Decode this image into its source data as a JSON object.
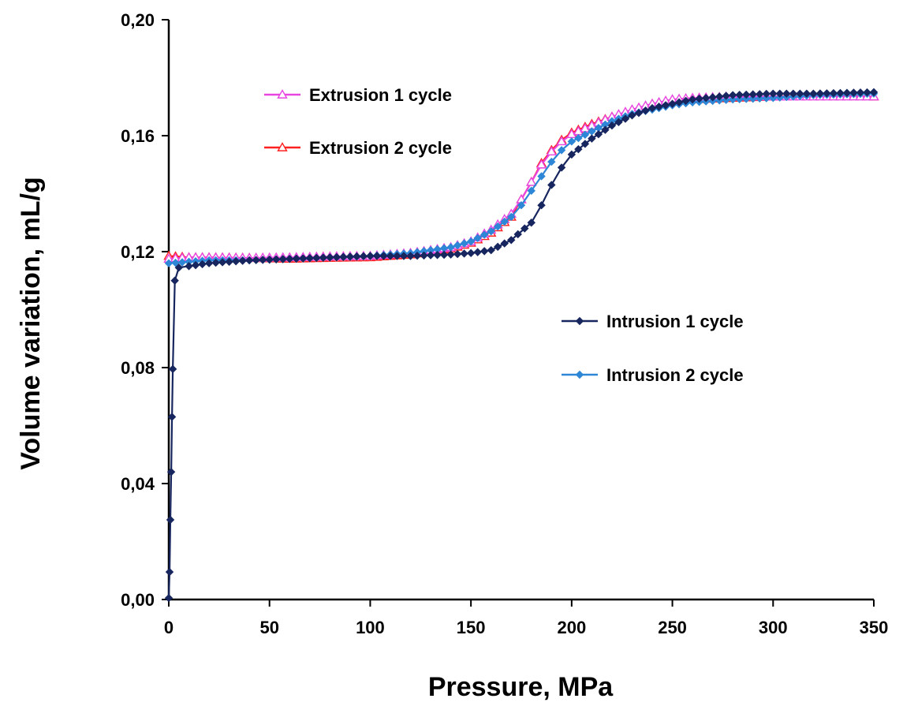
{
  "chart_data": {
    "type": "scatter",
    "title": "",
    "xlabel": "Pressure, MPa",
    "ylabel": "Volume variation, mL/g",
    "xlim": [
      0,
      350
    ],
    "ylim": [
      0,
      0.2
    ],
    "x_ticks": [
      "0",
      "50",
      "100",
      "150",
      "200",
      "250",
      "300",
      "350"
    ],
    "y_ticks": [
      "0,00",
      "0,04",
      "0,08",
      "0,12",
      "0,16",
      "0,20"
    ],
    "grid": false,
    "series": [
      {
        "name": "Extrusion 1 cycle",
        "color": "#e845e0",
        "marker": "triangle-open",
        "points": [
          [
            0,
            0.1175
          ],
          [
            10,
            0.118
          ],
          [
            20,
            0.118
          ],
          [
            40,
            0.1178
          ],
          [
            60,
            0.118
          ],
          [
            80,
            0.1183
          ],
          [
            100,
            0.1185
          ],
          [
            120,
            0.1195
          ],
          [
            140,
            0.1215
          ],
          [
            150,
            0.1235
          ],
          [
            160,
            0.1275
          ],
          [
            170,
            0.133
          ],
          [
            175,
            0.138
          ],
          [
            180,
            0.144
          ],
          [
            185,
            0.15
          ],
          [
            190,
            0.1545
          ],
          [
            195,
            0.158
          ],
          [
            200,
            0.1605
          ],
          [
            210,
            0.1635
          ],
          [
            220,
            0.1665
          ],
          [
            230,
            0.169
          ],
          [
            240,
            0.171
          ],
          [
            250,
            0.1725
          ],
          [
            260,
            0.173
          ],
          [
            280,
            0.1735
          ],
          [
            300,
            0.1735
          ],
          [
            320,
            0.1735
          ],
          [
            350,
            0.1735
          ]
        ]
      },
      {
        "name": "Extrusion 2 cycle",
        "color": "#ff2020",
        "marker": "triangle-open",
        "points": [
          [
            0,
            0.1185
          ],
          [
            10,
            0.118
          ],
          [
            20,
            0.118
          ],
          [
            40,
            0.1178
          ],
          [
            60,
            0.1175
          ],
          [
            80,
            0.1178
          ],
          [
            100,
            0.118
          ],
          [
            120,
            0.119
          ],
          [
            140,
            0.121
          ],
          [
            150,
            0.123
          ],
          [
            160,
            0.1265
          ],
          [
            170,
            0.132
          ],
          [
            175,
            0.138
          ],
          [
            180,
            0.144
          ],
          [
            185,
            0.1505
          ],
          [
            190,
            0.155
          ],
          [
            195,
            0.1585
          ],
          [
            200,
            0.161
          ],
          [
            210,
            0.164
          ],
          [
            220,
            0.1665
          ],
          [
            230,
            0.1685
          ],
          [
            240,
            0.1705
          ],
          [
            250,
            0.172
          ],
          [
            260,
            0.1725
          ],
          [
            280,
            0.173
          ],
          [
            300,
            0.1735
          ],
          [
            320,
            0.174
          ],
          [
            350,
            0.1735
          ]
        ]
      },
      {
        "name": "Intrusion 1 cycle",
        "color": "#17265f",
        "marker": "diamond",
        "points": [
          [
            0,
            0.0005
          ],
          [
            0.4,
            0.0095
          ],
          [
            0.8,
            0.0275
          ],
          [
            1.2,
            0.044
          ],
          [
            1.6,
            0.063
          ],
          [
            2,
            0.0795
          ],
          [
            3,
            0.11
          ],
          [
            5,
            0.1145
          ],
          [
            10,
            0.115
          ],
          [
            20,
            0.116
          ],
          [
            40,
            0.117
          ],
          [
            60,
            0.1175
          ],
          [
            80,
            0.118
          ],
          [
            100,
            0.1185
          ],
          [
            120,
            0.1185
          ],
          [
            140,
            0.119
          ],
          [
            150,
            0.1195
          ],
          [
            160,
            0.1205
          ],
          [
            170,
            0.124
          ],
          [
            180,
            0.13
          ],
          [
            185,
            0.136
          ],
          [
            190,
            0.143
          ],
          [
            195,
            0.149
          ],
          [
            200,
            0.1535
          ],
          [
            210,
            0.159
          ],
          [
            220,
            0.1635
          ],
          [
            230,
            0.167
          ],
          [
            240,
            0.1695
          ],
          [
            250,
            0.171
          ],
          [
            260,
            0.1725
          ],
          [
            280,
            0.174
          ],
          [
            300,
            0.1745
          ],
          [
            320,
            0.1745
          ],
          [
            350,
            0.175
          ]
        ]
      },
      {
        "name": "Intrusion 2 cycle",
        "color": "#2e86d6",
        "marker": "diamond",
        "points": [
          [
            0,
            0.116
          ],
          [
            10,
            0.1165
          ],
          [
            20,
            0.117
          ],
          [
            40,
            0.117
          ],
          [
            60,
            0.1175
          ],
          [
            80,
            0.118
          ],
          [
            100,
            0.1185
          ],
          [
            120,
            0.1195
          ],
          [
            140,
            0.1215
          ],
          [
            150,
            0.1235
          ],
          [
            160,
            0.127
          ],
          [
            170,
            0.132
          ],
          [
            175,
            0.136
          ],
          [
            180,
            0.141
          ],
          [
            185,
            0.146
          ],
          [
            190,
            0.151
          ],
          [
            195,
            0.155
          ],
          [
            200,
            0.158
          ],
          [
            210,
            0.1615
          ],
          [
            220,
            0.165
          ],
          [
            230,
            0.1675
          ],
          [
            240,
            0.169
          ],
          [
            250,
            0.1705
          ],
          [
            260,
            0.1715
          ],
          [
            280,
            0.1725
          ],
          [
            300,
            0.173
          ],
          [
            320,
            0.174
          ],
          [
            350,
            0.1745
          ]
        ]
      }
    ],
    "legends": [
      {
        "position": "top-left",
        "entries": [
          0,
          1
        ]
      },
      {
        "position": "middle-right",
        "entries": [
          2,
          3
        ]
      }
    ]
  }
}
